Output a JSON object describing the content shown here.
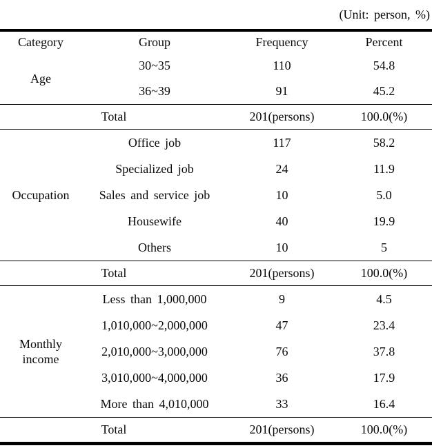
{
  "unit_label": "(Unit: person, %)",
  "columns": [
    "Category",
    "Group",
    "Frequency",
    "Percent"
  ],
  "sections": [
    {
      "category": "Age",
      "rows": [
        {
          "group": "30~35",
          "frequency": "110",
          "percent": "54.8"
        },
        {
          "group": "36~39",
          "frequency": "91",
          "percent": "45.2"
        }
      ],
      "total": {
        "label": "Total",
        "frequency": "201(persons)",
        "percent": "100.0(%)"
      }
    },
    {
      "category": "Occupation",
      "rows": [
        {
          "group": "Office job",
          "frequency": "117",
          "percent": "58.2"
        },
        {
          "group": "Specialized job",
          "frequency": "24",
          "percent": "11.9"
        },
        {
          "group": "Sales and service job",
          "frequency": "10",
          "percent": "5.0"
        },
        {
          "group": "Housewife",
          "frequency": "40",
          "percent": "19.9"
        },
        {
          "group": "Others",
          "frequency": "10",
          "percent": "5"
        }
      ],
      "total": {
        "label": "Total",
        "frequency": "201(persons)",
        "percent": "100.0(%)"
      }
    },
    {
      "category": "Monthly income",
      "rows": [
        {
          "group": "Less than 1,000,000",
          "frequency": "9",
          "percent": "4.5"
        },
        {
          "group": "1,010,000~2,000,000",
          "frequency": "47",
          "percent": "23.4"
        },
        {
          "group": "2,010,000~3,000,000",
          "frequency": "76",
          "percent": "37.8"
        },
        {
          "group": "3,010,000~4,000,000",
          "frequency": "36",
          "percent": "17.9"
        },
        {
          "group": "More than 4,010,000",
          "frequency": "33",
          "percent": "16.4"
        }
      ],
      "total": {
        "label": "Total",
        "frequency": "201(persons)",
        "percent": "100.0(%)"
      }
    }
  ]
}
